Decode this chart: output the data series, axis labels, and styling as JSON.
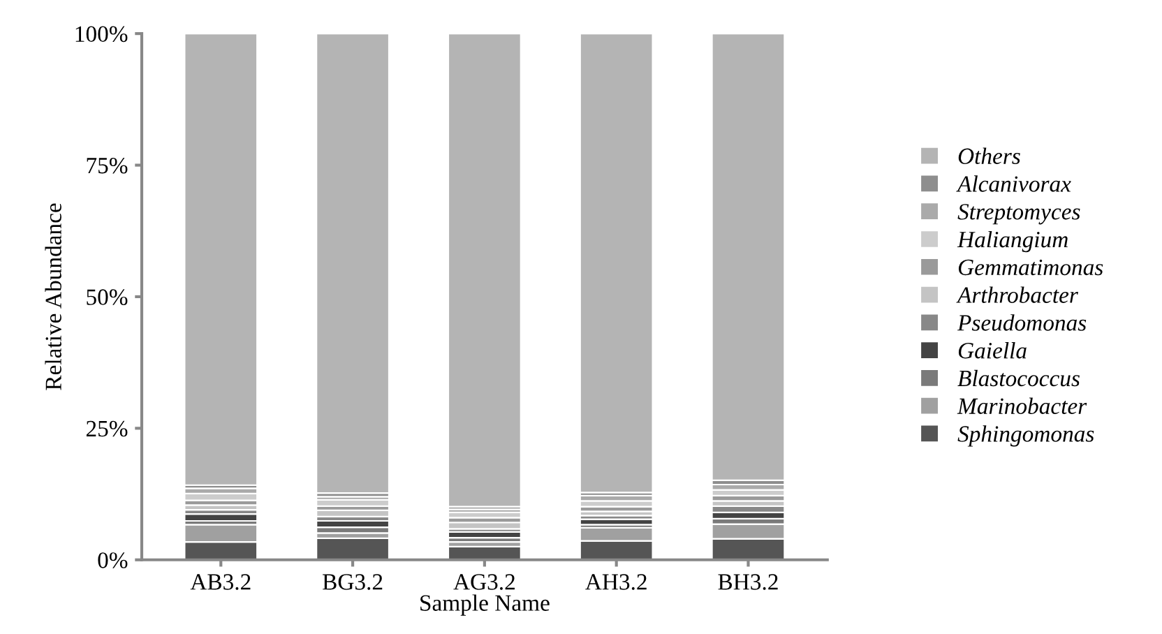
{
  "chart_data": {
    "type": "bar",
    "stacked": true,
    "xlabel": "Sample Name",
    "ylabel": "Relative Abundance",
    "categories": [
      "AB3.2",
      "BG3.2",
      "AG3.2",
      "AH3.2",
      "BH3.2"
    ],
    "ylim": [
      0,
      100
    ],
    "yticks": [
      {
        "value": 0,
        "label": "0%"
      },
      {
        "value": 25,
        "label": "25%"
      },
      {
        "value": 50,
        "label": "50%"
      },
      {
        "value": 75,
        "label": "75%"
      },
      {
        "value": 100,
        "label": "100%"
      }
    ],
    "grid": false,
    "legend": "right",
    "series": [
      {
        "name": "Sphingomonas",
        "color": "#555555",
        "values": [
          3.4,
          4.1,
          2.5,
          3.6,
          4.0
        ]
      },
      {
        "name": "Marinobacter",
        "color": "#a0a0a0",
        "values": [
          3.3,
          1.0,
          0.9,
          2.5,
          2.8
        ]
      },
      {
        "name": "Blastococcus",
        "color": "#7a7a7a",
        "values": [
          0.7,
          1.1,
          0.8,
          0.6,
          1.0
        ]
      },
      {
        "name": "Gaiella",
        "color": "#444444",
        "values": [
          1.3,
          1.2,
          1.1,
          1.0,
          1.2
        ]
      },
      {
        "name": "Pseudomonas",
        "color": "#888888",
        "values": [
          0.8,
          0.8,
          0.6,
          0.7,
          1.2
        ]
      },
      {
        "name": "Arthrobacter",
        "color": "#c4c4c4",
        "values": [
          0.9,
          1.2,
          1.2,
          0.8,
          1.0
        ]
      },
      {
        "name": "Gemmatimonas",
        "color": "#9a9a9a",
        "values": [
          0.9,
          0.8,
          0.9,
          0.9,
          1.0
        ]
      },
      {
        "name": "Haliangium",
        "color": "#cccccc",
        "values": [
          1.3,
          1.2,
          1.0,
          1.1,
          1.1
        ]
      },
      {
        "name": "Streptomyces",
        "color": "#aaaaaa",
        "values": [
          1.0,
          0.6,
          0.6,
          1.0,
          1.0
        ]
      },
      {
        "name": "Alcanivorax",
        "color": "#8e8e8e",
        "values": [
          0.6,
          0.7,
          0.5,
          0.6,
          0.8
        ]
      },
      {
        "name": "Others",
        "color": "#b4b4b4",
        "values": [
          85.8,
          87.3,
          89.9,
          87.2,
          84.9
        ]
      }
    ]
  }
}
